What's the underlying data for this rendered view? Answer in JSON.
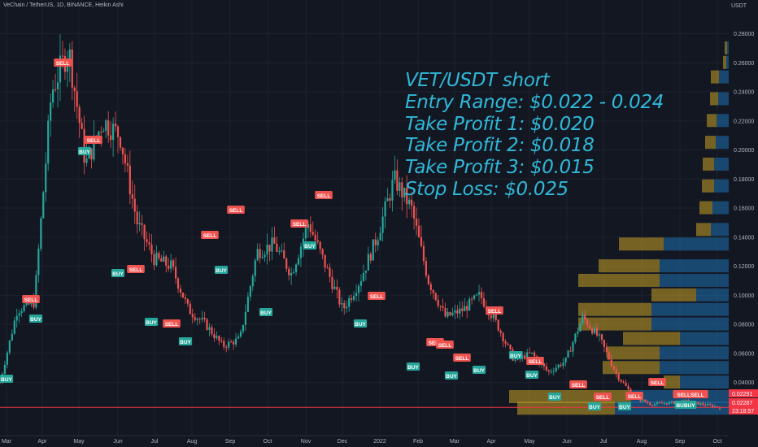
{
  "header": {
    "title": "VeChain / TetherUS, 1D, BINANCE, Heikin Ashi"
  },
  "axis": {
    "unit": "USDT"
  },
  "annotation": {
    "lines": [
      "VET/USDT short",
      "Entry Range: $0.022 - 0.024",
      "Take Profit 1: $0.020",
      "Take Profit 2: $0.018",
      "Take Profit 3: $0.015",
      "Stop Loss: $0.025"
    ]
  },
  "chart_data": {
    "type": "candlestick",
    "scale": "linear",
    "ylim": [
      0.0,
      0.29
    ],
    "y_ticks": [
      "0.28000",
      "0.26000",
      "0.24000",
      "0.22000",
      "0.20000",
      "0.18000",
      "0.16000",
      "0.14000",
      "0.12000",
      "0.10000",
      "0.08000",
      "0.06000",
      "0.04000"
    ],
    "x_ticks": [
      "Mar",
      "Apr",
      "May",
      "Jun",
      "Jul",
      "Aug",
      "Sep",
      "Oct",
      "Nov",
      "Dec",
      "2022",
      "Feb",
      "Mar",
      "Apr",
      "May",
      "Jun",
      "Jul",
      "Aug",
      "Sep",
      "Oct"
    ],
    "price_labels": [
      {
        "value": "0.02291",
        "color": "#f23645"
      },
      {
        "value": "0.02287",
        "color": "#f23645"
      },
      {
        "value": "23:18:57",
        "color": "#f23645"
      }
    ],
    "horizontal_line": {
      "value": 0.0229,
      "color": "#f23645"
    },
    "close_path": [
      [
        "Mar",
        0.04
      ],
      [
        "Mar",
        0.09
      ],
      [
        "Apr",
        0.095
      ],
      [
        "Apr",
        0.24
      ],
      [
        "Apr",
        0.27
      ],
      [
        "May",
        0.19
      ],
      [
        "May",
        0.22
      ],
      [
        "May",
        0.21
      ],
      [
        "May",
        0.15
      ],
      [
        "Jun",
        0.125
      ],
      [
        "Jun",
        0.12
      ],
      [
        "Jun",
        0.09
      ],
      [
        "Jul",
        0.08
      ],
      [
        "Jul",
        0.065
      ],
      [
        "Aug",
        0.07
      ],
      [
        "Aug",
        0.13
      ],
      [
        "Sep",
        0.135
      ],
      [
        "Sep",
        0.115
      ],
      [
        "Sep",
        0.15
      ],
      [
        "Oct",
        0.12
      ],
      [
        "Oct",
        0.09
      ],
      [
        "Oct",
        0.11
      ],
      [
        "Nov",
        0.14
      ],
      [
        "Nov",
        0.18
      ],
      [
        "Nov",
        0.16
      ],
      [
        "Dec",
        0.11
      ],
      [
        "Dec",
        0.085
      ],
      [
        "Dec",
        0.09
      ],
      [
        "2022",
        0.1
      ],
      [
        "2022",
        0.08
      ],
      [
        "Feb",
        0.055
      ],
      [
        "Feb",
        0.06
      ],
      [
        "Mar",
        0.047
      ],
      [
        "Mar",
        0.055
      ],
      [
        "Apr",
        0.085
      ],
      [
        "Apr",
        0.07
      ],
      [
        "May",
        0.045
      ],
      [
        "May",
        0.03
      ],
      [
        "Jun",
        0.025
      ],
      [
        "Jul",
        0.026
      ],
      [
        "Aug",
        0.027
      ],
      [
        "Sep",
        0.025
      ],
      [
        "Oct",
        0.0229
      ]
    ],
    "signals": [
      {
        "label": "SELL",
        "x": "Apr",
        "y": 0.27
      },
      {
        "label": "SELL",
        "x": "Mar",
        "y": 0.1
      },
      {
        "label": "BUY",
        "x": "Mar",
        "y": 0.08
      },
      {
        "label": "BUY",
        "x": "Mar",
        "y": 0.043
      },
      {
        "label": "BUY",
        "x": "May",
        "y": 0.195
      },
      {
        "label": "SELL",
        "x": "May",
        "y": 0.207
      },
      {
        "label": "BUY",
        "x": "Jun",
        "y": 0.112
      },
      {
        "label": "SELL",
        "x": "Jun",
        "y": 0.113
      },
      {
        "label": "BUY",
        "x": "Jul",
        "y": 0.082
      },
      {
        "label": "SELL",
        "x": "Jul",
        "y": 0.08
      },
      {
        "label": "BUY",
        "x": "Jul",
        "y": 0.064
      },
      {
        "label": "SELL",
        "x": "Aug",
        "y": 0.141
      },
      {
        "label": "BUY",
        "x": "Sep",
        "y": 0.113
      },
      {
        "label": "SELL",
        "x": "Sep",
        "y": 0.158
      },
      {
        "label": "BUY",
        "x": "Oct",
        "y": 0.09
      },
      {
        "label": "SELL",
        "x": "Oct",
        "y": 0.148
      },
      {
        "label": "BUY",
        "x": "Oct",
        "y": 0.135
      },
      {
        "label": "SELL",
        "x": "Nov",
        "y": 0.167
      },
      {
        "label": "SELL",
        "x": "Dec",
        "y": 0.101
      },
      {
        "label": "BUY",
        "x": "Dec",
        "y": 0.079
      },
      {
        "label": "SELL",
        "x": "Feb",
        "y": 0.064
      },
      {
        "label": "BUY",
        "x": "Feb",
        "y": 0.047
      },
      {
        "label": "SELL",
        "x": "Feb",
        "y": 0.055
      },
      {
        "label": "BUY",
        "x": "Mar",
        "y": 0.041
      },
      {
        "label": "SELL",
        "x": "Mar",
        "y": 0.057
      },
      {
        "label": "BUY",
        "x": "Mar",
        "y": 0.046
      },
      {
        "label": "SELL",
        "x": "Apr",
        "y": 0.087
      },
      {
        "label": "BUY",
        "x": "Apr",
        "y": 0.057
      },
      {
        "label": "SELL",
        "x": "May",
        "y": 0.051
      },
      {
        "label": "BUY",
        "x": "May",
        "y": 0.041
      },
      {
        "label": "SELL",
        "x": "Jun",
        "y": 0.037
      },
      {
        "label": "BUY",
        "x": "Jun",
        "y": 0.025
      },
      {
        "label": "SELL",
        "x": "Jul",
        "y": 0.025
      },
      {
        "label": "BUY",
        "x": "Jul",
        "y": 0.014
      },
      {
        "label": "SELL",
        "x": "Aug",
        "y": 0.029
      },
      {
        "label": "BUY",
        "x": "Aug",
        "y": 0.016
      },
      {
        "label": "SELL",
        "x": "Aug",
        "y": 0.038
      },
      {
        "label": "SELLSELL",
        "x": "Sep",
        "y": 0.029
      },
      {
        "label": "BUBUY",
        "x": "Sep",
        "y": 0.016
      }
    ],
    "volume_profile": [
      {
        "price": 0.27,
        "up": 0.003,
        "down": 0.002
      },
      {
        "price": 0.26,
        "up": 0.004,
        "down": 0.003
      },
      {
        "price": 0.25,
        "up": 0.01,
        "down": 0.012
      },
      {
        "price": 0.235,
        "up": 0.01,
        "down": 0.013
      },
      {
        "price": 0.22,
        "up": 0.012,
        "down": 0.015
      },
      {
        "price": 0.205,
        "up": 0.013,
        "down": 0.016
      },
      {
        "price": 0.19,
        "up": 0.014,
        "down": 0.018
      },
      {
        "price": 0.175,
        "up": 0.015,
        "down": 0.018
      },
      {
        "price": 0.16,
        "up": 0.016,
        "down": 0.02
      },
      {
        "price": 0.145,
        "up": 0.018,
        "down": 0.022
      },
      {
        "price": 0.135,
        "up": 0.055,
        "down": 0.08
      },
      {
        "price": 0.12,
        "up": 0.075,
        "down": 0.085
      },
      {
        "price": 0.11,
        "up": 0.1,
        "down": 0.085
      },
      {
        "price": 0.1,
        "up": 0.055,
        "down": 0.04
      },
      {
        "price": 0.09,
        "up": 0.09,
        "down": 0.095
      },
      {
        "price": 0.08,
        "up": 0.09,
        "down": 0.095
      },
      {
        "price": 0.07,
        "up": 0.07,
        "down": 0.06
      },
      {
        "price": 0.06,
        "up": 0.065,
        "down": 0.085
      },
      {
        "price": 0.05,
        "up": 0.07,
        "down": 0.085
      },
      {
        "price": 0.04,
        "up": 0.02,
        "down": 0.06
      },
      {
        "price": 0.03,
        "up": 0.15,
        "down": 0.12
      },
      {
        "price": 0.022,
        "up": 0.12,
        "down": 0.14
      }
    ],
    "colors": {
      "up": "#26a69a",
      "down": "#ef5350",
      "vp_up": "#c9a227",
      "vp_down": "#1e6fb0",
      "text": "#b2b5be"
    }
  }
}
